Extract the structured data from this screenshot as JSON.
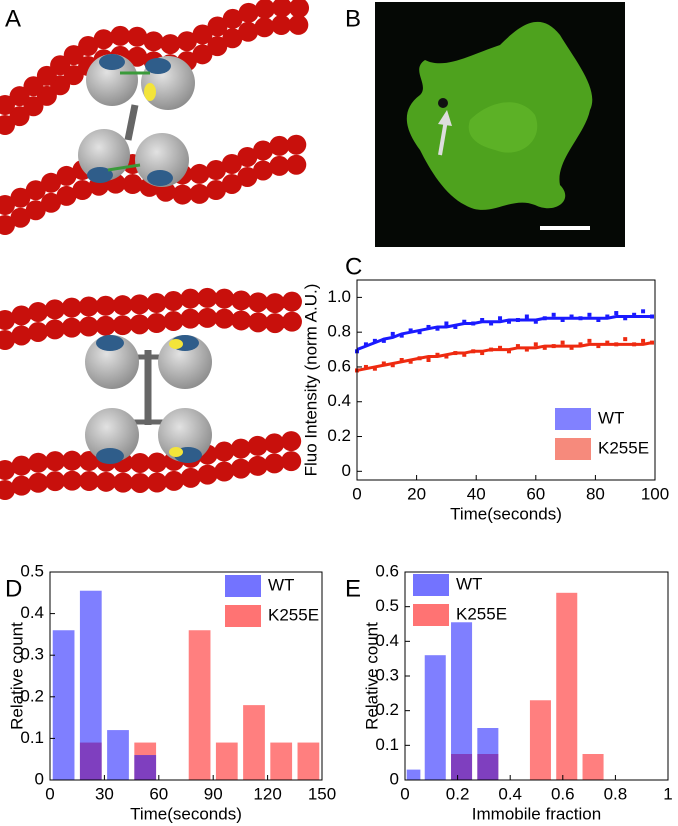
{
  "panel_labels": [
    "A",
    "B",
    "C",
    "D",
    "E"
  ],
  "chart_data": [
    {
      "type": "scatter",
      "xlabel": "Time(seconds)",
      "ylabel": "Fluo  Intensity (norm A.U.)",
      "xlim": [
        0,
        100
      ],
      "xticks": [
        0,
        20,
        40,
        60,
        80,
        100
      ],
      "ylim": [
        -0.05,
        1.1
      ],
      "yticks": [
        0,
        0.2,
        0.4,
        0.6,
        0.8,
        {
          "value": 1,
          "label": "1.0"
        }
      ],
      "legend": "lower right",
      "series": [
        {
          "name": "WT",
          "color": "#1a1aff",
          "x": [
            0,
            3,
            6,
            9,
            12,
            15,
            18,
            21,
            24,
            27,
            30,
            33,
            36,
            39,
            42,
            45,
            48,
            51,
            54,
            57,
            60,
            63,
            66,
            69,
            72,
            75,
            78,
            81,
            84,
            87,
            90,
            93,
            96,
            99
          ],
          "values": [
            0.69,
            0.73,
            0.75,
            0.75,
            0.79,
            0.78,
            0.81,
            0.8,
            0.83,
            0.82,
            0.85,
            0.83,
            0.86,
            0.85,
            0.87,
            0.85,
            0.88,
            0.86,
            0.87,
            0.89,
            0.86,
            0.88,
            0.9,
            0.87,
            0.89,
            0.88,
            0.9,
            0.87,
            0.89,
            0.91,
            0.88,
            0.9,
            0.92,
            0.89
          ],
          "fit": [
            0.7,
            0.72,
            0.74,
            0.76,
            0.77,
            0.79,
            0.8,
            0.81,
            0.82,
            0.83,
            0.83,
            0.84,
            0.85,
            0.85,
            0.86,
            0.86,
            0.86,
            0.87,
            0.87,
            0.87,
            0.87,
            0.88,
            0.88,
            0.88,
            0.88,
            0.88,
            0.88,
            0.88,
            0.88,
            0.89,
            0.89,
            0.89,
            0.89,
            0.89
          ]
        },
        {
          "name": "K255E",
          "color": "#ee2a10",
          "x": [
            0,
            3,
            6,
            9,
            12,
            15,
            18,
            21,
            24,
            27,
            30,
            33,
            36,
            39,
            42,
            45,
            48,
            51,
            54,
            57,
            60,
            63,
            66,
            69,
            72,
            75,
            78,
            81,
            84,
            87,
            90,
            93,
            96,
            99
          ],
          "values": [
            0.58,
            0.6,
            0.59,
            0.62,
            0.61,
            0.64,
            0.63,
            0.65,
            0.64,
            0.67,
            0.66,
            0.68,
            0.67,
            0.69,
            0.68,
            0.7,
            0.71,
            0.69,
            0.72,
            0.7,
            0.73,
            0.71,
            0.72,
            0.74,
            0.71,
            0.73,
            0.75,
            0.72,
            0.74,
            0.73,
            0.76,
            0.73,
            0.75,
            0.74
          ],
          "fit": [
            0.58,
            0.59,
            0.6,
            0.61,
            0.62,
            0.63,
            0.64,
            0.65,
            0.66,
            0.66,
            0.67,
            0.68,
            0.68,
            0.69,
            0.69,
            0.7,
            0.7,
            0.7,
            0.71,
            0.71,
            0.71,
            0.72,
            0.72,
            0.72,
            0.72,
            0.72,
            0.73,
            0.73,
            0.73,
            0.73,
            0.73,
            0.73,
            0.73,
            0.74
          ]
        }
      ]
    },
    {
      "type": "histogram",
      "xlabel": "Time(seconds)",
      "ylabel": "Relative count",
      "bins": [
        0,
        15,
        30,
        45,
        60,
        75,
        90,
        105,
        120,
        135,
        150
      ],
      "xlim": [
        0,
        150
      ],
      "xticks": [
        0,
        30,
        60,
        90,
        120,
        150
      ],
      "ylim": [
        0,
        0.5
      ],
      "yticks": [
        0,
        0.1,
        0.2,
        0.3,
        0.4,
        0.5
      ],
      "legend": "upper right",
      "opacity": 0.5,
      "series": [
        {
          "name": "WT",
          "color": "#0000ff",
          "values": [
            0.36,
            0.455,
            0.12,
            0.06,
            0,
            0,
            0,
            0,
            0,
            0
          ]
        },
        {
          "name": "K255E",
          "color": "#ff0000",
          "values": [
            0,
            0.09,
            0,
            0.09,
            0,
            0.36,
            0.09,
            0.18,
            0.09,
            0.09
          ]
        }
      ]
    },
    {
      "type": "histogram",
      "xlabel": "Immobile fraction",
      "ylabel": "Relative count",
      "bins": [
        0,
        0.065,
        0.165,
        0.265,
        0.365,
        0.465,
        0.565,
        0.665,
        0.765
      ],
      "xlim": [
        0,
        1
      ],
      "xticks": [
        0,
        0.2,
        0.4,
        0.6,
        0.8,
        1
      ],
      "ylim": [
        0,
        0.6
      ],
      "yticks": [
        0,
        0.1,
        0.2,
        0.3,
        0.4,
        0.5,
        0.6
      ],
      "legend": "upper left",
      "opacity": 0.5,
      "series": [
        {
          "name": "WT",
          "color": "#0000ff",
          "values": [
            0.03,
            0.36,
            0.455,
            0.15,
            0,
            0,
            0,
            0
          ]
        },
        {
          "name": "K255E",
          "color": "#ff0000",
          "values": [
            0,
            0,
            0.075,
            0.075,
            0,
            0.23,
            0.54,
            0.075
          ]
        }
      ]
    }
  ]
}
